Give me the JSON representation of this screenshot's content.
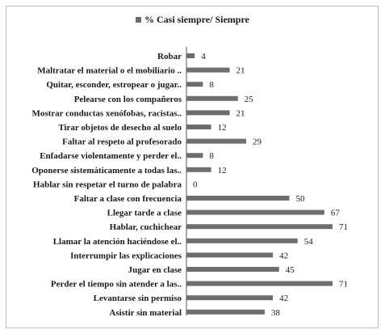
{
  "chart_data": {
    "type": "bar",
    "orientation": "horizontal",
    "legend": "top",
    "grid": false,
    "series": [
      {
        "name": "% Casi siempre/ Siempre",
        "color": "#6e6e6e",
        "values": [
          4,
          21,
          8,
          25,
          21,
          12,
          29,
          8,
          12,
          0,
          50,
          67,
          71,
          54,
          42,
          45,
          71,
          42,
          38
        ]
      }
    ],
    "categories": [
      "Robar",
      "Maltratar el material o el mobiliario ..",
      "Quitar, esconder, estropear o jugar..",
      "Pelearse con los compañeros",
      "Mostrar conductas xenófobas, racistas..",
      "Tirar objetos de desecho al suelo",
      "Faltar al respeto al profesorado",
      "Enfadarse violentamente y perder el..",
      "Oponerse sistemáticamente a todas las..",
      "Hablar sin respetar el turno de palabra",
      "Faltar a clase con frecuencia",
      "Llegar tarde a clase",
      "Hablar, cuchichear",
      "Llamar la atención haciéndose el..",
      "Interrumpir las explicaciones",
      "Jugar en clase",
      "Perder el tiempo sin atender a las..",
      "Levantarse sin permiso",
      "Asistir sin material"
    ],
    "xlim": [
      0,
      100
    ]
  }
}
